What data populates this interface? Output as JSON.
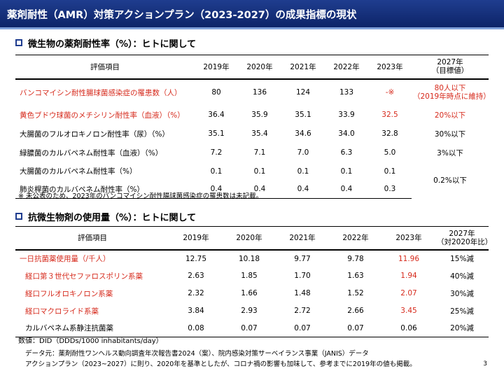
{
  "title": "薬剤耐性（AMR）対策アクションプラン（2023-2027）の成果指標の現状",
  "section1": {
    "heading": "微生物の薬剤耐性率（%）：ヒトに関して",
    "headers": [
      "評価項目",
      "2019年",
      "2020年",
      "2021年",
      "2022年",
      "2023年",
      "2027年",
      "（目標値）"
    ],
    "rows": [
      {
        "item": "バンコマイシン耐性腸球菌感染症の罹患数（人）",
        "y2019": "80",
        "y2020": "136",
        "y2021": "124",
        "y2022": "133",
        "y2023": "-※",
        "target1": "80人以下",
        "target2": "（2019年時点に維持）"
      },
      {
        "item": "黄色ブドウ球菌のメチシリン耐性率（血液）（%）",
        "y2019": "36.4",
        "y2020": "35.9",
        "y2021": "35.1",
        "y2022": "33.9",
        "y2023": "32.5",
        "target1": "20%以下"
      },
      {
        "item": "大腸菌のフルオロキノロン耐性率（尿）（%）",
        "y2019": "35.1",
        "y2020": "35.4",
        "y2021": "34.6",
        "y2022": "34.0",
        "y2023": "32.8",
        "target1": "30%以下"
      },
      {
        "item": "緑膿菌のカルバペネム耐性率（血液）（%）",
        "y2019": "7.2",
        "y2020": "7.1",
        "y2021": "7.0",
        "y2022": "6.3",
        "y2023": "5.0",
        "target1": "3%以下"
      },
      {
        "item": "大腸菌のカルバペネム耐性率（%）",
        "y2019": "0.1",
        "y2020": "0.1",
        "y2021": "0.1",
        "y2022": "0.1",
        "y2023": "0.1"
      },
      {
        "item": "肺炎桿菌のカルバペネム耐性率（%）",
        "y2019": "0.4",
        "y2020": "0.4",
        "y2021": "0.4",
        "y2022": "0.4",
        "y2023": "0.3"
      }
    ],
    "shared_target": "0.2%以下",
    "footnote": "※ 未公表のため、2023年のバンコマイシン耐性腸球菌感染症の罹患数は未記載。"
  },
  "section2": {
    "heading": "抗微生物剤の使用量（%）：ヒトに関して",
    "headers": [
      "評価項目",
      "2019年",
      "2020年",
      "2021年",
      "2022年",
      "2023年",
      "2027年",
      "（対2020年比）"
    ],
    "rows": [
      {
        "item": "一日抗菌薬使用量（/千人）",
        "y2019": "12.75",
        "y2020": "10.18",
        "y2021": "9.77",
        "y2022": "9.78",
        "y2023": "11.96",
        "target": "15%減"
      },
      {
        "item": "経口第３世代セファロスポリン系薬",
        "y2019": "2.63",
        "y2020": "1.85",
        "y2021": "1.70",
        "y2022": "1.63",
        "y2023": "1.94",
        "target": "40%減"
      },
      {
        "item": "経口フルオロキノロン系薬",
        "y2019": "2.32",
        "y2020": "1.66",
        "y2021": "1.48",
        "y2022": "1.52",
        "y2023": "2.07",
        "target": "30%減"
      },
      {
        "item": "経口マクロライド系薬",
        "y2019": "3.84",
        "y2020": "2.93",
        "y2021": "2.72",
        "y2022": "2.66",
        "y2023": "3.45",
        "target": "25%減"
      },
      {
        "item": "カルバペネム系静注抗菌薬",
        "y2019": "0.08",
        "y2020": "0.07",
        "y2021": "0.07",
        "y2022": "0.07",
        "y2023": "0.06",
        "target": "20%減"
      }
    ],
    "unit_note": "数値：DID（DDDs/1000 inhabitants/day）"
  },
  "source_line1": "データ元：薬剤耐性ワンヘルス動向調査年次報告書2024（案）、院内感染対策サーベイランス事業（JANIS）データ",
  "source_line2": "アクションプラン（2023~2027）に則り、2020年を基準としたが、コロナ禍の影響も加味して、参考までに2019年の値も掲載。",
  "page_number": "3",
  "colors": {
    "accent_red": "#d62a1c",
    "title_bar": "#1f3d8f"
  }
}
